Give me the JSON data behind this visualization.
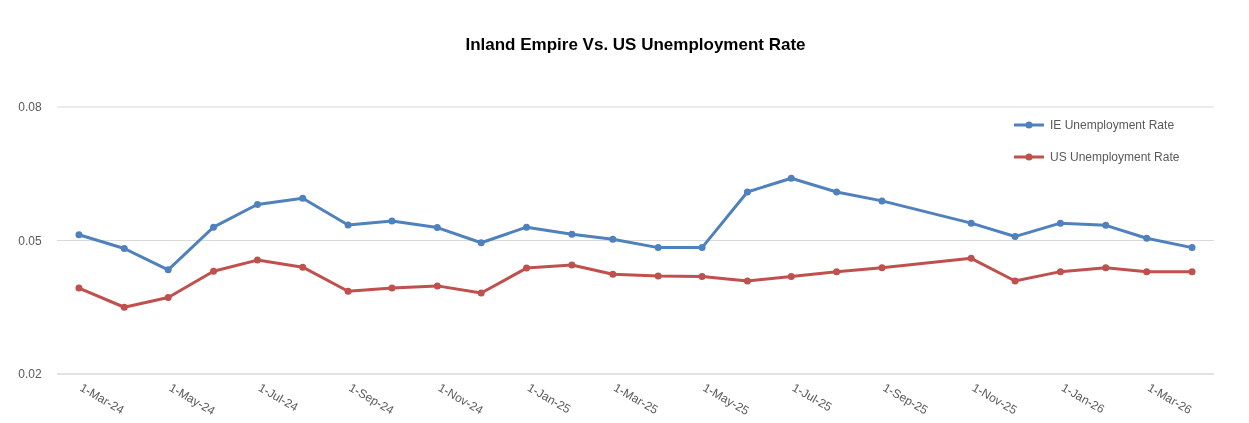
{
  "chart_data": {
    "type": "line",
    "title": "Inland Empire Vs. US Unemployment Rate",
    "x": [
      "2024-03",
      "2024-04",
      "2024-05",
      "2024-06",
      "2024-07",
      "2024-08",
      "2024-09",
      "2024-10",
      "2024-11",
      "2024-12",
      "2025-01",
      "2025-02",
      "2025-03",
      "2025-04",
      "2025-05",
      "2025-06",
      "2025-07",
      "2025-08",
      "2025-09",
      "2025-11",
      "2025-12",
      "2026-01",
      "2026-02",
      "2026-03",
      "2026-04"
    ],
    "series": [
      {
        "name": "IE Unemployment Rate",
        "color": "#4f81bd",
        "values": [
          0.0513,
          0.0482,
          0.0434,
          0.053,
          0.0581,
          0.0595,
          0.0535,
          0.0544,
          0.0529,
          0.0495,
          0.053,
          0.0514,
          0.0503,
          0.0484,
          0.0484,
          0.0609,
          0.064,
          0.0609,
          0.0589,
          0.0539,
          0.0509,
          0.0539,
          0.0534,
          0.0505,
          0.0484
        ]
      },
      {
        "name": "US Unemployment Rate",
        "color": "#c0504d",
        "values": [
          0.0393,
          0.035,
          0.0372,
          0.0431,
          0.0456,
          0.044,
          0.0386,
          0.0393,
          0.0398,
          0.0382,
          0.0438,
          0.0445,
          0.0424,
          0.042,
          0.0419,
          0.0409,
          0.0419,
          0.043,
          0.0439,
          0.046,
          0.0409,
          0.043,
          0.0439,
          0.043,
          0.043
        ]
      }
    ],
    "xlim": [
      "2024-02-15",
      "2026-04-16"
    ],
    "xticks": [
      {
        "value": "2024-03-01",
        "label": "1-Mar-24"
      },
      {
        "value": "2024-05-01",
        "label": "1-May-24"
      },
      {
        "value": "2024-07-01",
        "label": "1-Jul-24"
      },
      {
        "value": "2024-09-01",
        "label": "1-Sep-24"
      },
      {
        "value": "2024-11-01",
        "label": "1-Nov-24"
      },
      {
        "value": "2025-01-01",
        "label": "1-Jan-25"
      },
      {
        "value": "2025-03-01",
        "label": "1-Mar-25"
      },
      {
        "value": "2025-05-01",
        "label": "1-May-25"
      },
      {
        "value": "2025-07-01",
        "label": "1-Jul-25"
      },
      {
        "value": "2025-09-01",
        "label": "1-Sep-25"
      },
      {
        "value": "2025-11-01",
        "label": "1-Nov-25"
      },
      {
        "value": "2026-01-01",
        "label": "1-Jan-26"
      },
      {
        "value": "2026-03-01",
        "label": "1-Mar-26"
      }
    ],
    "ylim": [
      0.02,
      0.08
    ],
    "yticks": [
      0.02,
      0.05,
      0.08
    ],
    "grid": "y",
    "legend": "top right",
    "marker": "circle",
    "line_style": "solid"
  }
}
